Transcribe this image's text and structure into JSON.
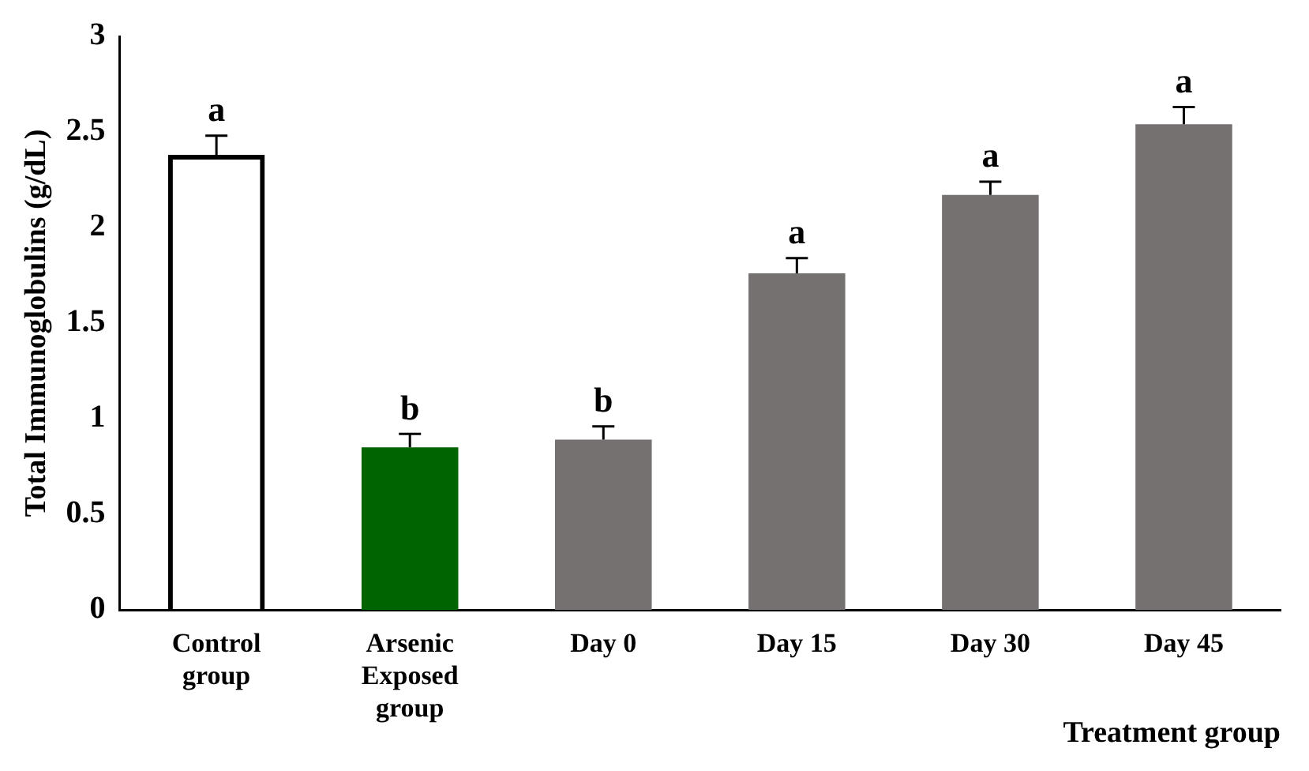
{
  "chart_data": {
    "type": "bar",
    "ylabel": "Total Immunoglobulins (g/dL)",
    "xlabel": "Treatment group",
    "categories": [
      "Control\ngroup",
      "Arsenic\nExposed\ngroup",
      "Day 0",
      "Day 15",
      "Day 30",
      "Day 45"
    ],
    "values": [
      2.38,
      0.85,
      0.89,
      1.76,
      2.17,
      2.54
    ],
    "colors": [
      "#000000",
      "#006400",
      "#767171",
      "#767171",
      "#767171",
      "#767171"
    ],
    "errors": [
      [
        2.38,
        2.48
      ],
      [
        0.85,
        0.92
      ],
      [
        0.89,
        0.96
      ],
      [
        1.76,
        1.84
      ],
      [
        2.17,
        2.24
      ],
      [
        2.54,
        2.63
      ]
    ],
    "ylim": [
      0,
      3
    ],
    "yticks": [
      0,
      0.5,
      1,
      1.5,
      2,
      2.5,
      3
    ],
    "grid": false,
    "legend": false,
    "annotations": [
      {
        "text": "a",
        "x": "Control\ngroup",
        "y": 2.48
      },
      {
        "text": "b",
        "x": "Arsenic\nExposed\ngroup",
        "y": 0.92
      },
      {
        "text": "b",
        "x": "Day 0",
        "y": 0.96
      },
      {
        "text": "a",
        "x": "Day 15",
        "y": 1.84
      },
      {
        "text": "a",
        "x": "Day 30",
        "y": 2.24
      },
      {
        "text": "a",
        "x": "Day 45",
        "y": 2.63
      }
    ]
  }
}
